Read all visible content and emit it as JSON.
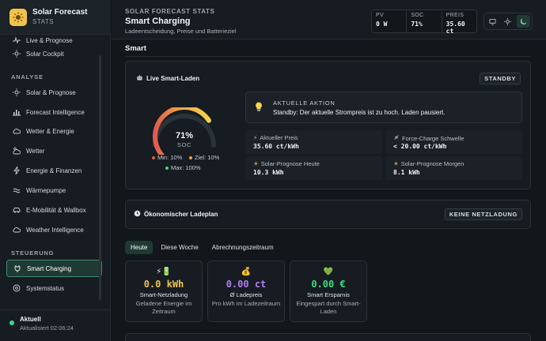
{
  "brand": {
    "title": "Solar Forecast",
    "subtitle": "STATS"
  },
  "sidebar": {
    "top_items": [
      {
        "label": "Live & Prognose",
        "icon": "activity-icon"
      },
      {
        "label": "Solar Cockpit",
        "icon": "sun-icon"
      }
    ],
    "sections": [
      {
        "title": "ANALYSE",
        "items": [
          {
            "label": "Solar & Prognose",
            "icon": "sun-icon"
          },
          {
            "label": "Forecast Intelligence",
            "icon": "bar-chart-icon"
          },
          {
            "label": "Wetter & Energie",
            "icon": "cloud-icon"
          },
          {
            "label": "Wetter",
            "icon": "cloud-sun-icon"
          },
          {
            "label": "Energie & Finanzen",
            "icon": "bolt-icon"
          },
          {
            "label": "Wärmepumpe",
            "icon": "heatpump-icon"
          },
          {
            "label": "E-Mobilität & Wallbox",
            "icon": "car-icon"
          },
          {
            "label": "Weather Intelligence",
            "icon": "cloud-icon"
          }
        ]
      },
      {
        "title": "STEUERUNG",
        "items": [
          {
            "label": "Smart Charging",
            "icon": "plug-icon",
            "active": true
          },
          {
            "label": "Systemstatus",
            "icon": "gauge-icon"
          }
        ]
      }
    ],
    "status": {
      "title": "Aktuell",
      "subtitle": "Aktualisiert 02:06:24"
    }
  },
  "header": {
    "kicker": "SOLAR FORECAST STATS",
    "title": "Smart Charging",
    "subtitle": "Ladeentscheidung, Preise und Batterieziel",
    "kpis": [
      {
        "label": "PV",
        "value": "0 W"
      },
      {
        "label": "SOC",
        "value": "71%"
      },
      {
        "label": "PREIS",
        "value": "35.60 ct"
      }
    ],
    "theme_modes": [
      "monitor-icon",
      "sun-icon",
      "moon-icon"
    ]
  },
  "main": {
    "section_title": "Smart",
    "live": {
      "title": "Live Smart-Laden",
      "badge": "STANDBY",
      "gauge": {
        "value": "71%",
        "label": "SOC",
        "soc_fraction": 0.71,
        "min_label": "Min: 10%",
        "target_label": "Ziel: 10%",
        "max_label": "Max: 100%"
      },
      "action": {
        "label": "AKTUELLE AKTION",
        "text": "Standby: Der aktuelle Strompreis ist zu hoch. Laden pausiert."
      },
      "cells": [
        {
          "label": "Aktueller Preis",
          "value": "35.60 ct/kWh",
          "icon": "bolt-icon"
        },
        {
          "label": "Force-Charge Schwelle",
          "value": "< 20.00 ct/kWh",
          "icon": "plug-icon"
        },
        {
          "label": "Solar-Prognose Heute",
          "value": "10.3 kWh",
          "icon": "sun-icon"
        },
        {
          "label": "Solar-Prognose Morgen",
          "value": "8.1 kWh",
          "icon": "sun-icon"
        }
      ]
    },
    "plan": {
      "title": "Ökonomischer Ladeplan",
      "badge": "KEINE NETZLADUNG"
    },
    "tabs": [
      "Heute",
      "Diese Woche",
      "Abrechnungszeitraum"
    ],
    "stats": [
      {
        "icons": "⚡🔋",
        "value": "0.0 kWh",
        "label": "Smart-Netzladung",
        "desc": "Geladene Energie im Zeitraum",
        "color": "#f2c14e"
      },
      {
        "icons": "💰",
        "value": "0.00 ct",
        "label": "Ø Ladepreis",
        "desc": "Pro kWh im Ladezeitraum",
        "color": "#b07cf2"
      },
      {
        "icons": "💚",
        "value": "0.00 €",
        "label": "Smart Ersparnis",
        "desc": "Eingespart durch Smart-Laden",
        "color": "#3ddc84"
      }
    ]
  }
}
